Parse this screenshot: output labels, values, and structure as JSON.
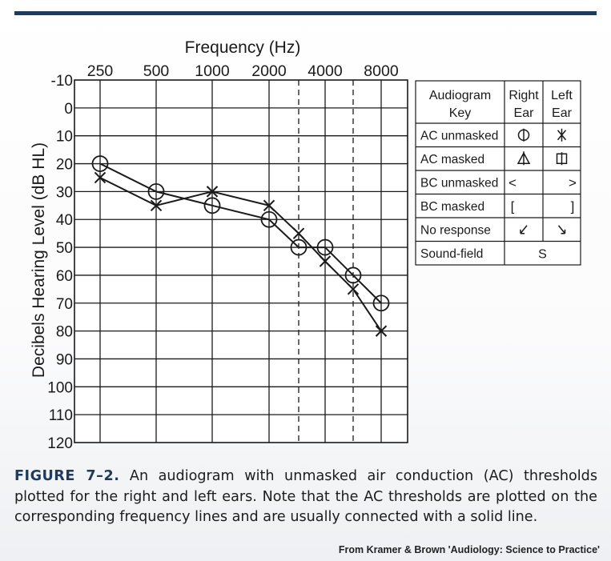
{
  "chart_data": {
    "type": "line",
    "title": "Frequency (Hz)",
    "xlabel": "Frequency (Hz)",
    "ylabel": "Decibels Hearing Level (dB HL)",
    "x_ticks": [
      "250",
      "500",
      "1000",
      "2000",
      "4000",
      "8000"
    ],
    "x_positions": [
      250,
      500,
      1000,
      2000,
      3000,
      4000,
      6000,
      8000
    ],
    "x_dashed": [
      3000,
      6000
    ],
    "y_ticks": [
      "-10",
      "0",
      "10",
      "20",
      "30",
      "40",
      "50",
      "60",
      "70",
      "80",
      "90",
      "100",
      "110",
      "120"
    ],
    "ylim": [
      -10,
      120
    ],
    "grid": true,
    "series": [
      {
        "ear": "Right",
        "marker": "circle",
        "x": [
          250,
          500,
          1000,
          2000,
          3000,
          4000,
          6000,
          8000
        ],
        "values": [
          20,
          30,
          35,
          40,
          50,
          50,
          60,
          70
        ]
      },
      {
        "ear": "Left",
        "marker": "x",
        "x": [
          250,
          500,
          1000,
          2000,
          3000,
          4000,
          6000,
          8000
        ],
        "values": [
          25,
          35,
          30,
          35,
          45,
          55,
          65,
          80
        ]
      }
    ]
  },
  "legend": {
    "header_key": "Audiogram Key",
    "header_right": "Right Ear",
    "header_left": "Left Ear",
    "rows": [
      {
        "label": "AC unmasked",
        "right": "circle-icon",
        "left": "x-icon"
      },
      {
        "label": "AC masked",
        "right": "triangle-icon",
        "left": "square-icon"
      },
      {
        "label": "BC unmasked",
        "right": "<",
        "left": ">"
      },
      {
        "label": "BC masked",
        "right": "[",
        "left": "]"
      },
      {
        "label": "No response",
        "right": "arrow-down-left-icon",
        "left": "arrow-down-right-icon"
      },
      {
        "label": "Sound-field",
        "both": "S"
      }
    ]
  },
  "caption": {
    "label": "FIGURE 7–2.",
    "text": "An audiogram with unmasked air conduction (AC) thresholds plotted for the right and left ears. Note that the AC thresholds are plotted on the corresponding frequency lines and are usually connected with a solid line."
  },
  "credit": "From Kramer & Brown 'Audiology: Science to Practice'",
  "colors": {
    "rule": "#1f3a5a",
    "ink": "#1a1a1a"
  }
}
